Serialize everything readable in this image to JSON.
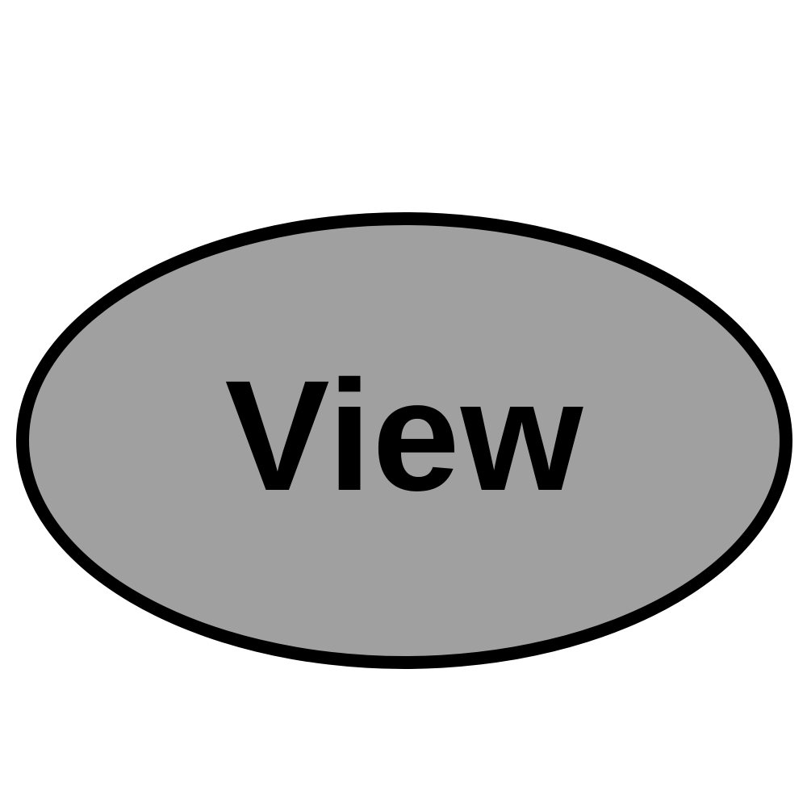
{
  "view_button": {
    "label": "View",
    "fill_color": "#a0a0a0",
    "border_color": "#000000",
    "text_color": "#000000"
  },
  "background_color": "#ffffff"
}
